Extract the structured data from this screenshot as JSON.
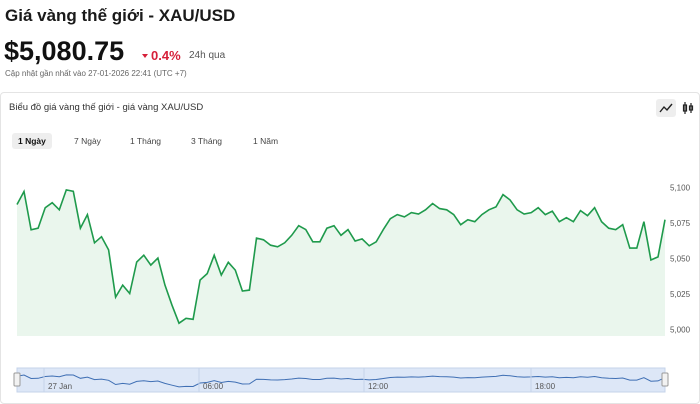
{
  "header": {
    "title": "Giá vàng thế giới - XAU/USD",
    "price": "$5,080.75",
    "change": "0.4%",
    "period": "24h qua",
    "updated": "Cập nhật gần nhất vào 27-01-2026 22:41 (UTC +7)"
  },
  "panel": {
    "title": "Biểu đồ giá vàng thế giới - giá vàng XAU/USD",
    "tabs": [
      "1 Ngày",
      "7 Ngày",
      "1 Tháng",
      "3 Tháng",
      "1 Năm"
    ]
  },
  "chart_data": {
    "type": "area",
    "color": "#1f9a4c",
    "fill": "#eaf6ed",
    "values": [
      5088.7,
      5097.9,
      5070.9,
      5072,
      5086.5,
      5090,
      5085,
      5099,
      5098,
      5072,
      5081.6,
      5061.7,
      5066,
      5056.7,
      5023.4,
      5031.9,
      5026,
      5048.2,
      5053,
      5046,
      5051,
      5032,
      5017.7,
      5005,
      5008.5,
      5007.8,
      5035.5,
      5040,
      5053,
      5039,
      5048,
      5042.5,
      5027.7,
      5028.4,
      5065,
      5063.8,
      5060,
      5058.9,
      5061.7,
      5067,
      5073.8,
      5071,
      5062.4,
      5062.4,
      5072,
      5073.8,
      5067,
      5071,
      5063,
      5064.5,
      5059.6,
      5062.4,
      5071,
      5078.7,
      5081.6,
      5080,
      5083,
      5082,
      5085,
      5089.4,
      5085.8,
      5085,
      5081.6,
      5074.5,
      5078,
      5076.6,
      5081.6,
      5085,
      5087,
      5095.7,
      5092,
      5085,
      5082,
      5083,
      5086.5,
      5081.6,
      5084,
      5076.6,
      5079.4,
      5076.6,
      5084.4,
      5080.8,
      5086.5,
      5076.6,
      5072,
      5071,
      5074.5,
      5058,
      5058,
      5076.6,
      5049.6,
      5051.8,
      5078
    ],
    "ylim": [
      4996,
      5106
    ],
    "yticks": [
      {
        "value": 5000,
        "label": "5,000"
      },
      {
        "value": 5025,
        "label": "5,025"
      },
      {
        "value": 5050,
        "label": "5,050"
      },
      {
        "value": 5075,
        "label": "5,075"
      },
      {
        "value": 5100,
        "label": "5,100"
      }
    ],
    "navigator_labels": [
      "27 Jan",
      "06:00",
      "12:00",
      "18:00"
    ]
  }
}
